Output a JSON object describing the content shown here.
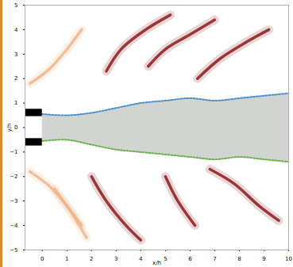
{
  "chart_data": {
    "type": "field",
    "xlabel": "x/h",
    "ylabel": "y/h",
    "xlim": [
      -0.7,
      10
    ],
    "ylim": [
      -5,
      5
    ],
    "xticks": [
      0,
      1,
      2,
      3,
      4,
      5,
      6,
      7,
      8,
      9,
      10
    ],
    "yticks": [
      -5,
      -4,
      -3,
      -2,
      -1,
      0,
      1,
      2,
      3,
      4,
      5
    ],
    "grid": false,
    "jet": {
      "x": [
        0,
        1,
        2,
        3,
        4,
        5,
        6,
        7,
        8,
        9,
        10
      ],
      "upper": [
        0.55,
        0.5,
        0.6,
        0.8,
        1.0,
        1.1,
        1.2,
        1.1,
        1.2,
        1.3,
        1.4
      ],
      "lower": [
        -0.55,
        -0.5,
        -0.7,
        -0.9,
        -1.0,
        -1.1,
        -1.2,
        -1.3,
        -1.2,
        -1.3,
        -1.4
      ],
      "color": "#c9ccc9",
      "edge_colors": [
        "#4a8fd0",
        "#6ab04c"
      ]
    },
    "nozzle": [
      {
        "x": [
          -0.7,
          0
        ],
        "y": [
          0.45,
          0.75
        ],
        "color": "#000000"
      },
      {
        "x": [
          -0.7,
          0
        ],
        "y": [
          -0.75,
          -0.45
        ],
        "color": "#000000"
      }
    ],
    "wavefronts": [
      {
        "x": [
          2.6,
          3.2,
          4.2,
          5.2
        ],
        "y": [
          2.3,
          3.2,
          4.0,
          4.6
        ],
        "color": "#8b1a1a"
      },
      {
        "x": [
          4.3,
          5.0,
          6.0,
          7.0
        ],
        "y": [
          2.5,
          3.2,
          3.8,
          4.4
        ],
        "color": "#8b1a1a"
      },
      {
        "x": [
          6.3,
          7.2,
          8.3,
          9.2
        ],
        "y": [
          2.0,
          2.8,
          3.5,
          4.0
        ],
        "color": "#8b1a1a"
      },
      {
        "x": [
          2.0,
          2.6,
          3.4,
          4.0
        ],
        "y": [
          -2.0,
          -3.0,
          -4.0,
          -4.6
        ],
        "color": "#8b1a1a"
      },
      {
        "x": [
          5.0,
          5.5,
          6.2
        ],
        "y": [
          -2.0,
          -3.0,
          -4.0
        ],
        "color": "#8b1a1a"
      },
      {
        "x": [
          6.8,
          7.8,
          8.8,
          9.6
        ],
        "y": [
          -1.7,
          -2.3,
          -3.2,
          -3.8
        ],
        "color": "#8b1a1a"
      },
      {
        "x": [
          -0.5,
          0.3,
          1.0,
          1.6
        ],
        "y": [
          1.8,
          2.4,
          3.2,
          4.0
        ],
        "color": "#f0b58a"
      },
      {
        "x": [
          -0.5,
          0.3,
          1.0,
          1.6
        ],
        "y": [
          -1.8,
          -2.4,
          -3.2,
          -4.0
        ],
        "color": "#f0b58a"
      },
      {
        "x": [
          0.5,
          1.2,
          1.8
        ],
        "y": [
          -2.5,
          -3.5,
          -4.5
        ],
        "color": "#f0b58a"
      }
    ]
  }
}
